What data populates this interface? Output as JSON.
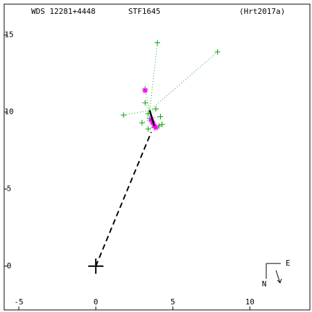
{
  "chart_data": {
    "type": "scatter",
    "title": "WDS 12281+4448",
    "subtitle": "STF1645",
    "annotation": "(Hrt2017a)",
    "compass": {
      "north": "N",
      "east": "E"
    },
    "xlim": [
      -5.95,
      13.9
    ],
    "ylim": [
      -2.84,
      17.0
    ],
    "xticks": [
      -5,
      0,
      5,
      10
    ],
    "yticks": [
      0,
      5,
      10,
      15
    ],
    "series": [
      {
        "marker": "plus",
        "color": "#00a000",
        "x": [
          4.0,
          7.9,
          3.2,
          3.2,
          1.8,
          3.9,
          3.4,
          3.5,
          4.2,
          3.0,
          3.4,
          4.1,
          3.8,
          4.3,
          3.6
        ],
        "y": [
          14.5,
          13.9,
          11.5,
          10.6,
          9.8,
          10.2,
          9.9,
          9.6,
          9.7,
          9.3,
          8.9,
          9.1,
          9.0,
          9.2,
          9.4
        ],
        "residuals": true
      },
      {
        "marker": "asterisk",
        "color": "#ff00ff",
        "x": [
          3.2,
          3.8,
          3.9,
          3.7,
          3.6
        ],
        "y": [
          11.4,
          9.1,
          9.0,
          9.3,
          9.5
        ]
      },
      {
        "marker": "line",
        "color": "#000000",
        "dash": false,
        "x": [
          3.5,
          3.65,
          3.8
        ],
        "y": [
          10.1,
          9.6,
          9.1
        ]
      },
      {
        "marker": "line",
        "color": "#000000",
        "dash": true,
        "x": [
          0,
          3.6
        ],
        "y": [
          0,
          8.7
        ]
      },
      {
        "marker": "bigplus",
        "color": "#000000",
        "x": [
          0
        ],
        "y": [
          0
        ]
      }
    ]
  }
}
